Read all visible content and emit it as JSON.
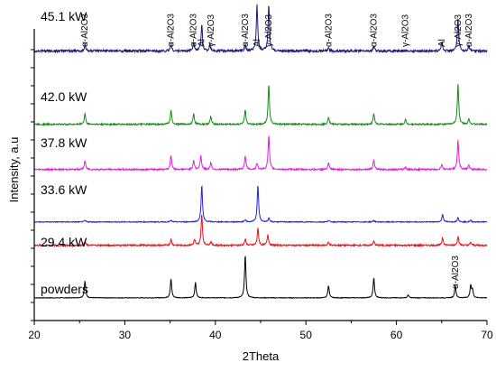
{
  "chart_data": {
    "type": "line",
    "xlabel": "2Theta",
    "ylabel": "Intensity, a.u",
    "xlim": [
      20,
      70
    ],
    "x_ticks": [
      20,
      30,
      40,
      50,
      60,
      70
    ],
    "stacked": true,
    "y_ticks_labeled": false,
    "series": [
      {
        "name": "powders",
        "color": "#000000",
        "baseline": 0.02,
        "peaks": [
          {
            "x": 25.6,
            "h": 0.55
          },
          {
            "x": 35.1,
            "h": 0.62
          },
          {
            "x": 37.8,
            "h": 0.5
          },
          {
            "x": 43.3,
            "h": 1.4
          },
          {
            "x": 52.5,
            "h": 0.4
          },
          {
            "x": 57.5,
            "h": 0.65
          },
          {
            "x": 61.3,
            "h": 0.1
          },
          {
            "x": 66.5,
            "h": 0.4
          },
          {
            "x": 68.2,
            "h": 0.4
          },
          {
            "x": 68.4,
            "h": 0.25
          }
        ]
      },
      {
        "name": "29.4 kW",
        "color": "#e8141c",
        "baseline": 0.05,
        "peaks": [
          {
            "x": 25.6,
            "h": 0.12
          },
          {
            "x": 35.1,
            "h": 0.2
          },
          {
            "x": 37.7,
            "h": 0.18
          },
          {
            "x": 38.5,
            "h": 1.0
          },
          {
            "x": 39.5,
            "h": 0.12
          },
          {
            "x": 43.3,
            "h": 0.2
          },
          {
            "x": 44.7,
            "h": 0.55
          },
          {
            "x": 45.8,
            "h": 0.35
          },
          {
            "x": 52.5,
            "h": 0.1
          },
          {
            "x": 57.5,
            "h": 0.13
          },
          {
            "x": 65.1,
            "h": 0.25
          },
          {
            "x": 66.8,
            "h": 0.3
          },
          {
            "x": 68.2,
            "h": 0.1
          }
        ]
      },
      {
        "name": "33.6 kW",
        "color": "#2323e0",
        "baseline": 0.03,
        "peaks": [
          {
            "x": 25.6,
            "h": 0.05
          },
          {
            "x": 35.1,
            "h": 0.05
          },
          {
            "x": 38.5,
            "h": 1.2
          },
          {
            "x": 43.3,
            "h": 0.07
          },
          {
            "x": 44.7,
            "h": 1.2
          },
          {
            "x": 45.9,
            "h": 0.12
          },
          {
            "x": 52.5,
            "h": 0.05
          },
          {
            "x": 57.5,
            "h": 0.05
          },
          {
            "x": 65.1,
            "h": 0.25
          },
          {
            "x": 66.8,
            "h": 0.15
          },
          {
            "x": 68.2,
            "h": 0.05
          }
        ]
      },
      {
        "name": "37.8 kW",
        "color": "#e020e0",
        "baseline": 0.05,
        "peaks": [
          {
            "x": 25.6,
            "h": 0.28
          },
          {
            "x": 35.1,
            "h": 0.45
          },
          {
            "x": 37.6,
            "h": 0.3
          },
          {
            "x": 38.4,
            "h": 0.45
          },
          {
            "x": 39.5,
            "h": 0.22
          },
          {
            "x": 43.3,
            "h": 0.45
          },
          {
            "x": 44.6,
            "h": 0.2
          },
          {
            "x": 45.9,
            "h": 1.1
          },
          {
            "x": 52.5,
            "h": 0.2
          },
          {
            "x": 57.5,
            "h": 0.3
          },
          {
            "x": 61.0,
            "h": 0.08
          },
          {
            "x": 65.0,
            "h": 0.15
          },
          {
            "x": 66.8,
            "h": 0.95
          },
          {
            "x": 68.0,
            "h": 0.15
          }
        ]
      },
      {
        "name": "42.0 kW",
        "color": "#1a8a1a",
        "baseline": 0.05,
        "peaks": [
          {
            "x": 25.6,
            "h": 0.35
          },
          {
            "x": 35.1,
            "h": 0.45
          },
          {
            "x": 37.6,
            "h": 0.35
          },
          {
            "x": 39.5,
            "h": 0.25
          },
          {
            "x": 43.3,
            "h": 0.45
          },
          {
            "x": 45.9,
            "h": 1.3
          },
          {
            "x": 52.5,
            "h": 0.25
          },
          {
            "x": 57.5,
            "h": 0.35
          },
          {
            "x": 61.0,
            "h": 0.15
          },
          {
            "x": 66.8,
            "h": 1.3
          },
          {
            "x": 68.0,
            "h": 0.2
          }
        ]
      },
      {
        "name": "45.1 kW",
        "color": "#1a1a7a",
        "baseline": 0.08,
        "peaks": [
          {
            "x": 25.6,
            "h": 0.2
          },
          {
            "x": 35.1,
            "h": 0.22
          },
          {
            "x": 37.6,
            "h": 0.3
          },
          {
            "x": 38.5,
            "h": 0.85
          },
          {
            "x": 39.4,
            "h": 0.2
          },
          {
            "x": 43.3,
            "h": 0.2
          },
          {
            "x": 44.6,
            "h": 1.5
          },
          {
            "x": 45.9,
            "h": 1.5
          },
          {
            "x": 52.5,
            "h": 0.08
          },
          {
            "x": 57.5,
            "h": 0.15
          },
          {
            "x": 65.0,
            "h": 0.3
          },
          {
            "x": 66.8,
            "h": 1.05
          },
          {
            "x": 68.0,
            "h": 0.18
          }
        ]
      }
    ],
    "peak_annotations": [
      {
        "series": "45.1 kW",
        "x": 25.6,
        "text": "α-Al2O3"
      },
      {
        "series": "45.1 kW",
        "x": 35.1,
        "text": "α-Al2O3"
      },
      {
        "series": "45.1 kW",
        "x": 37.6,
        "text": "α-Al2O3"
      },
      {
        "series": "45.1 kW",
        "x": 38.5,
        "text": "Al"
      },
      {
        "series": "45.1 kW",
        "x": 39.5,
        "text": "γ-Al2O3"
      },
      {
        "series": "45.1 kW",
        "x": 43.3,
        "text": "α-Al2O3"
      },
      {
        "series": "45.1 kW",
        "x": 44.6,
        "text": "Al"
      },
      {
        "series": "45.1 kW",
        "x": 45.9,
        "text": "γ-Al2O3"
      },
      {
        "series": "45.1 kW",
        "x": 52.5,
        "text": "α-Al2O3"
      },
      {
        "series": "45.1 kW",
        "x": 57.5,
        "text": "α-Al2O3"
      },
      {
        "series": "45.1 kW",
        "x": 61.0,
        "text": "γ-Al2O3"
      },
      {
        "series": "45.1 kW",
        "x": 65.0,
        "text": "Al"
      },
      {
        "series": "45.1 kW",
        "x": 66.8,
        "text": "γ-Al2O3"
      },
      {
        "series": "45.1 kW",
        "x": 68.0,
        "text": "α-Al2O3"
      },
      {
        "series": "powders",
        "x": 66.5,
        "text": "α-Al2O3"
      }
    ]
  }
}
